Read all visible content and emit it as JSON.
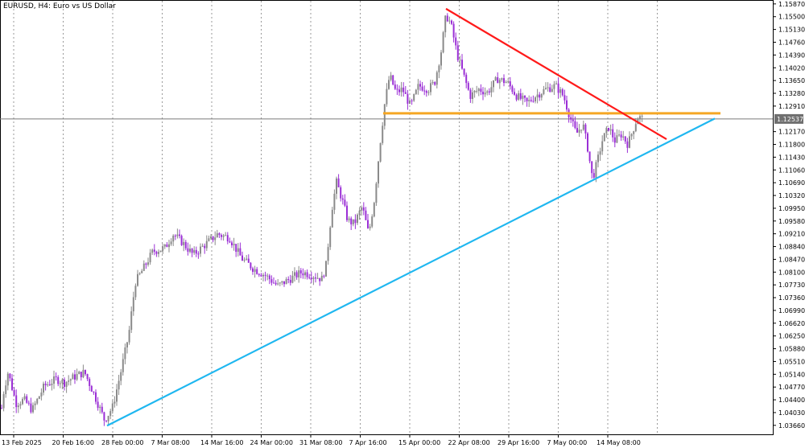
{
  "chart_title": "EURUSD, H4:  Euro vs US Dollar",
  "colors": {
    "background": "#ffffff",
    "bull_candle": "#8a8a8a",
    "bear_candle": "#9b2fd6",
    "resistance_line": "#ff1a1a",
    "support_line": "#1fb7f0",
    "horizontal_level": "#f5a623",
    "grid": "#9a9a9a",
    "price_tag_bg": "#6f6f6f",
    "price_tag_text": "#ffffff"
  },
  "chart_data": {
    "type": "candlestick",
    "symbol": "EURUSD",
    "timeframe": "H4",
    "ylim": [
      1.034,
      1.1596
    ],
    "y_ticks": [
      "1.15870",
      "1.15500",
      "1.15130",
      "1.14760",
      "1.14390",
      "1.14020",
      "1.13650",
      "1.13280",
      "1.12910",
      "1.12537",
      "1.12170",
      "1.11800",
      "1.11430",
      "1.11060",
      "1.10690",
      "1.10320",
      "1.09950",
      "1.09580",
      "1.09210",
      "1.08840",
      "1.08470",
      "1.08100",
      "1.07730",
      "1.07360",
      "1.06990",
      "1.06620",
      "1.06250",
      "1.05880",
      "1.05510",
      "1.05140",
      "1.04770",
      "1.04400",
      "1.04030",
      "1.03660"
    ],
    "x_labels": [
      "13 Feb 2025",
      "20 Feb 16:00",
      "28 Feb 00:00",
      "7 Mar 08:00",
      "14 Mar 16:00",
      "24 Mar 00:00",
      "31 Mar 08:00",
      "7 Apr 16:00",
      "15 Apr 00:00",
      "22 Apr 08:00",
      "29 Apr 16:00",
      "7 May 00:00",
      "14 May 08:00"
    ],
    "current_price": "1.12537",
    "anchors": [
      {
        "x": 0,
        "y": 1.038
      },
      {
        "x": 5,
        "y": 1.047
      },
      {
        "x": 10,
        "y": 1.052
      },
      {
        "x": 20,
        "y": 1.043
      },
      {
        "x": 30,
        "y": 1.044
      },
      {
        "x": 40,
        "y": 1.041
      },
      {
        "x": 55,
        "y": 1.048
      },
      {
        "x": 70,
        "y": 1.05
      },
      {
        "x": 80,
        "y": 1.049
      },
      {
        "x": 95,
        "y": 1.051
      },
      {
        "x": 105,
        "y": 1.052
      },
      {
        "x": 118,
        "y": 1.045
      },
      {
        "x": 130,
        "y": 1.038
      },
      {
        "x": 140,
        "y": 1.042
      },
      {
        "x": 150,
        "y": 1.052
      },
      {
        "x": 160,
        "y": 1.063
      },
      {
        "x": 168,
        "y": 1.078
      },
      {
        "x": 178,
        "y": 1.082
      },
      {
        "x": 190,
        "y": 1.087
      },
      {
        "x": 205,
        "y": 1.088
      },
      {
        "x": 215,
        "y": 1.092
      },
      {
        "x": 225,
        "y": 1.09
      },
      {
        "x": 240,
        "y": 1.086
      },
      {
        "x": 255,
        "y": 1.089
      },
      {
        "x": 270,
        "y": 1.092
      },
      {
        "x": 285,
        "y": 1.091
      },
      {
        "x": 300,
        "y": 1.085
      },
      {
        "x": 315,
        "y": 1.082
      },
      {
        "x": 330,
        "y": 1.08
      },
      {
        "x": 345,
        "y": 1.077
      },
      {
        "x": 360,
        "y": 1.079
      },
      {
        "x": 375,
        "y": 1.081
      },
      {
        "x": 390,
        "y": 1.08
      },
      {
        "x": 400,
        "y": 1.079
      },
      {
        "x": 405,
        "y": 1.083
      },
      {
        "x": 412,
        "y": 1.099
      },
      {
        "x": 418,
        "y": 1.107
      },
      {
        "x": 425,
        "y": 1.102
      },
      {
        "x": 432,
        "y": 1.096
      },
      {
        "x": 440,
        "y": 1.095
      },
      {
        "x": 450,
        "y": 1.1
      },
      {
        "x": 458,
        "y": 1.092
      },
      {
        "x": 465,
        "y": 1.102
      },
      {
        "x": 472,
        "y": 1.118
      },
      {
        "x": 478,
        "y": 1.13
      },
      {
        "x": 484,
        "y": 1.138
      },
      {
        "x": 492,
        "y": 1.133
      },
      {
        "x": 500,
        "y": 1.134
      },
      {
        "x": 510,
        "y": 1.129
      },
      {
        "x": 520,
        "y": 1.135
      },
      {
        "x": 532,
        "y": 1.134
      },
      {
        "x": 540,
        "y": 1.136
      },
      {
        "x": 548,
        "y": 1.145
      },
      {
        "x": 554,
        "y": 1.1555
      },
      {
        "x": 560,
        "y": 1.153
      },
      {
        "x": 568,
        "y": 1.144
      },
      {
        "x": 576,
        "y": 1.138
      },
      {
        "x": 584,
        "y": 1.132
      },
      {
        "x": 595,
        "y": 1.134
      },
      {
        "x": 605,
        "y": 1.133
      },
      {
        "x": 618,
        "y": 1.137
      },
      {
        "x": 630,
        "y": 1.136
      },
      {
        "x": 642,
        "y": 1.132
      },
      {
        "x": 655,
        "y": 1.13
      },
      {
        "x": 665,
        "y": 1.132
      },
      {
        "x": 678,
        "y": 1.134
      },
      {
        "x": 690,
        "y": 1.135
      },
      {
        "x": 700,
        "y": 1.132
      },
      {
        "x": 708,
        "y": 1.126
      },
      {
        "x": 716,
        "y": 1.121
      },
      {
        "x": 724,
        "y": 1.124
      },
      {
        "x": 730,
        "y": 1.117
      },
      {
        "x": 736,
        "y": 1.108
      },
      {
        "x": 742,
        "y": 1.113
      },
      {
        "x": 748,
        "y": 1.119
      },
      {
        "x": 756,
        "y": 1.123
      },
      {
        "x": 764,
        "y": 1.119
      },
      {
        "x": 772,
        "y": 1.121
      },
      {
        "x": 780,
        "y": 1.118
      },
      {
        "x": 786,
        "y": 1.122
      },
      {
        "x": 792,
        "y": 1.126
      },
      {
        "x": 800,
        "y": 1.1253
      }
    ],
    "levels": {
      "horizontal": 1.127,
      "resistance": {
        "from": {
          "x": 554,
          "y": 1.1573
        },
        "to": {
          "x": 828,
          "y": 1.1195
        }
      },
      "support": {
        "from": {
          "x": 133,
          "y": 1.0365
        },
        "to": {
          "x": 888,
          "y": 1.1255
        }
      }
    }
  }
}
